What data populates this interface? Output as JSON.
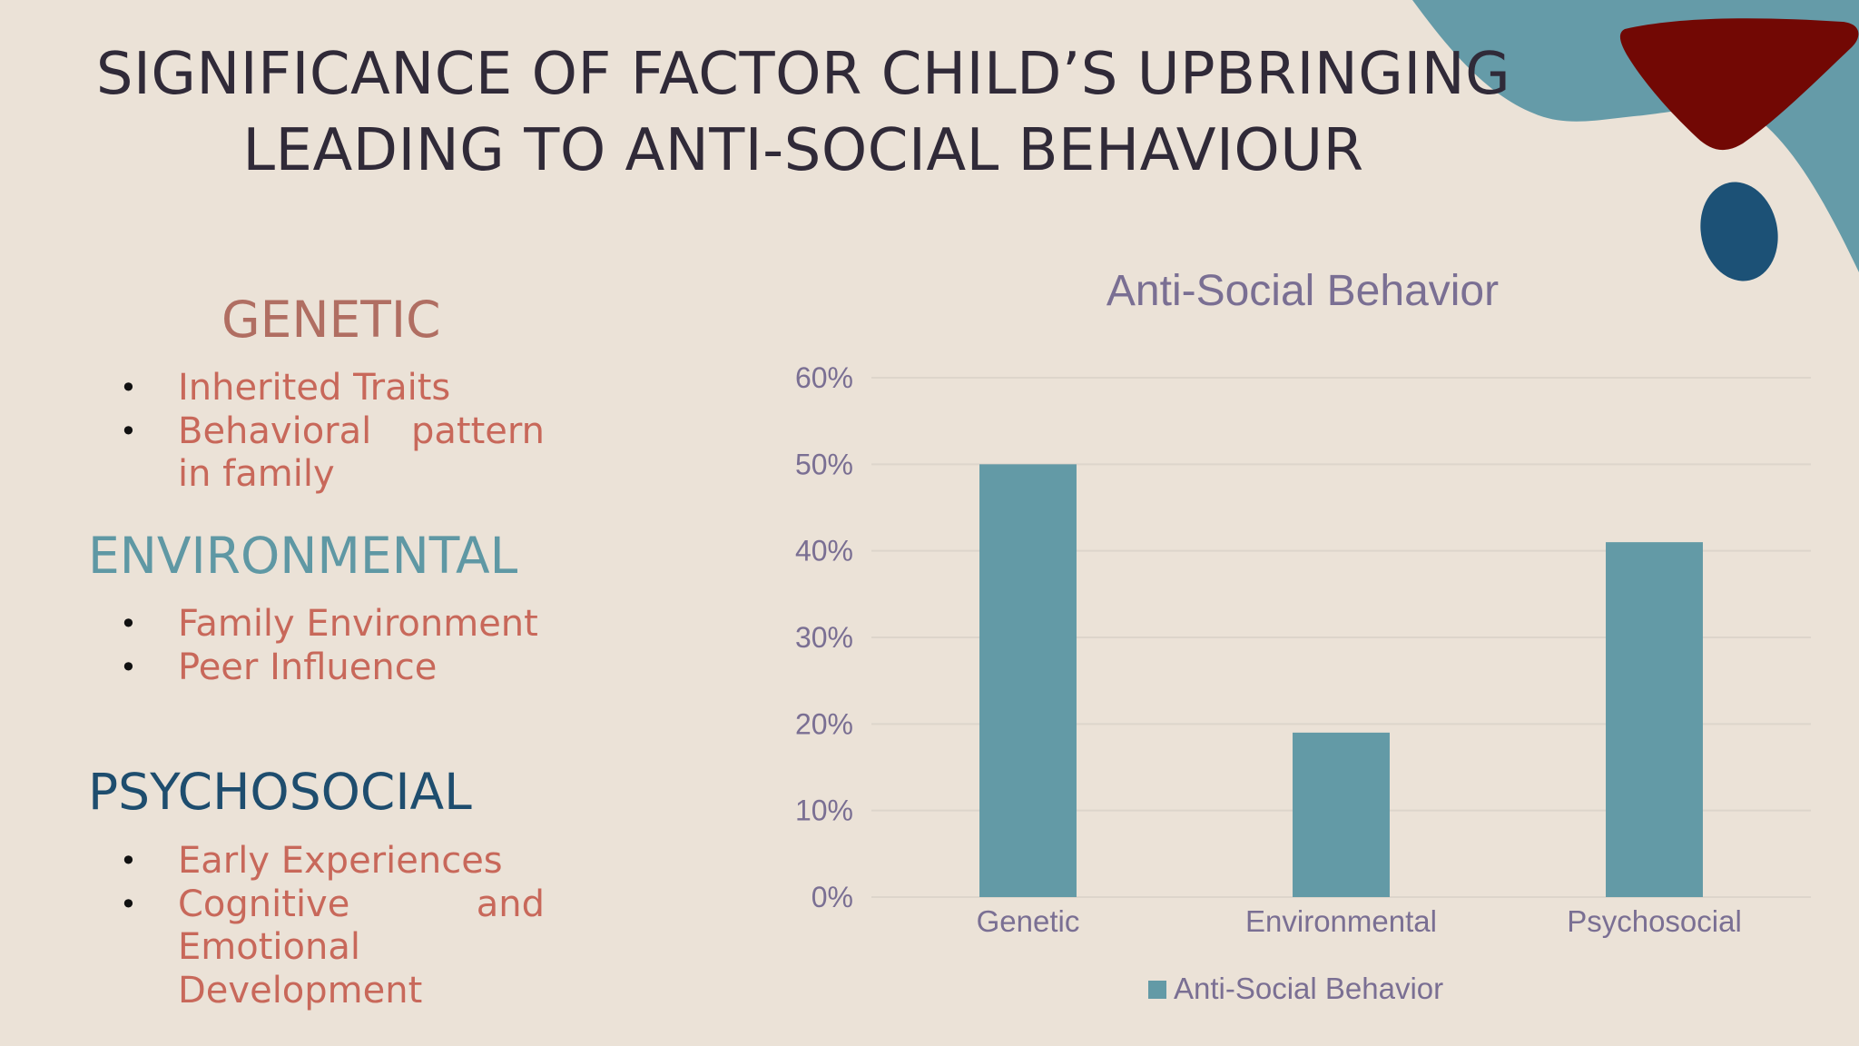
{
  "slide": {
    "title_lines": [
      "SIGNIFICANCE OF FACTOR CHILD’S UPBRINGING",
      "LEADING TO ANTI-SOCIAL BEHAVIOUR"
    ]
  },
  "sections": [
    {
      "heading": "GENETIC",
      "color": "#b06e62",
      "items": [
        "Inherited Traits",
        "Behavioral pattern in family"
      ]
    },
    {
      "heading": "ENVIRONMENTAL",
      "color": "#5f98a4",
      "items": [
        "Family Environment",
        "Peer Influence"
      ]
    },
    {
      "heading": "PSYCHOSOCIAL",
      "color": "#1e4d6e",
      "items": [
        "Early Experiences",
        "Cognitive and Emotional Development"
      ]
    }
  ],
  "colors": {
    "bar": "#639aa6",
    "axis_text": "#7a6f93",
    "grid": "#ddd5cb",
    "deco_teal": "#659ba8",
    "deco_red": "#720804",
    "deco_navy": "#1c5176"
  },
  "chart_data": {
    "type": "bar",
    "title": "Anti-Social Behavior",
    "categories": [
      "Genetic",
      "Environmental",
      "Psychosocial"
    ],
    "series": [
      {
        "name": "Anti-Social Behavior",
        "values": [
          0.5,
          0.19,
          0.41
        ]
      }
    ],
    "ylim": [
      0,
      0.6
    ],
    "yticks": [
      "0%",
      "10%",
      "20%",
      "30%",
      "40%",
      "50%",
      "60%"
    ],
    "grid": true,
    "legend": "bottom"
  }
}
